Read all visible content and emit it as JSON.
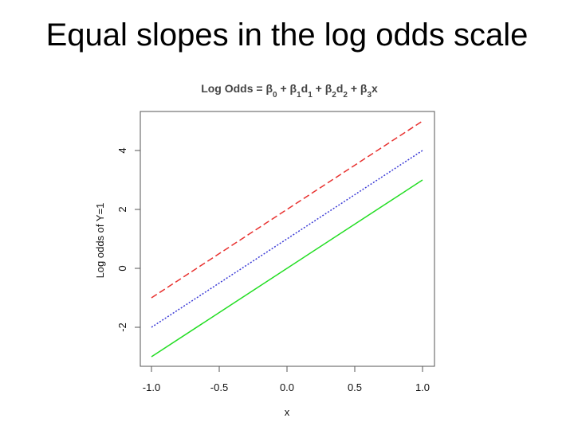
{
  "slide": {
    "title": "Equal slopes in the log odds scale"
  },
  "chart_data": {
    "type": "line",
    "title_parts": [
      {
        "text": "Log Odds = β",
        "sub": false
      },
      {
        "text": "0",
        "sub": true
      },
      {
        "text": " + β",
        "sub": false
      },
      {
        "text": "1",
        "sub": true
      },
      {
        "text": "d",
        "sub": false
      },
      {
        "text": "1",
        "sub": true
      },
      {
        "text": " + β",
        "sub": false
      },
      {
        "text": "2",
        "sub": true
      },
      {
        "text": "d",
        "sub": false
      },
      {
        "text": "2",
        "sub": true
      },
      {
        "text": " + β",
        "sub": false
      },
      {
        "text": "3",
        "sub": true
      },
      {
        "text": "x",
        "sub": false
      }
    ],
    "xlabel": "x",
    "ylabel": "Log odds of Y=1",
    "xlim": [
      -1.0,
      1.0
    ],
    "ylim": [
      -3.0,
      5.0
    ],
    "xticks": [
      -1.0,
      -0.5,
      0.0,
      0.5,
      1.0
    ],
    "xtick_labels": [
      "-1.0",
      "-0.5",
      "0.0",
      "0.5",
      "1.0"
    ],
    "yticks": [
      -2,
      0,
      2,
      4
    ],
    "ytick_labels": [
      "-2",
      "0",
      "2",
      "4"
    ],
    "grid": false,
    "series": [
      {
        "x": [
          -1.0,
          1.0
        ],
        "y": [
          -1.0,
          5.0
        ],
        "color": "#e8312f",
        "dash": "dashed"
      },
      {
        "x": [
          -1.0,
          1.0
        ],
        "y": [
          -2.0,
          4.0
        ],
        "color": "#3a3ad6",
        "dash": "dotted"
      },
      {
        "x": [
          -1.0,
          1.0
        ],
        "y": [
          -3.0,
          3.0
        ],
        "color": "#22dd22",
        "dash": "solid"
      }
    ]
  }
}
